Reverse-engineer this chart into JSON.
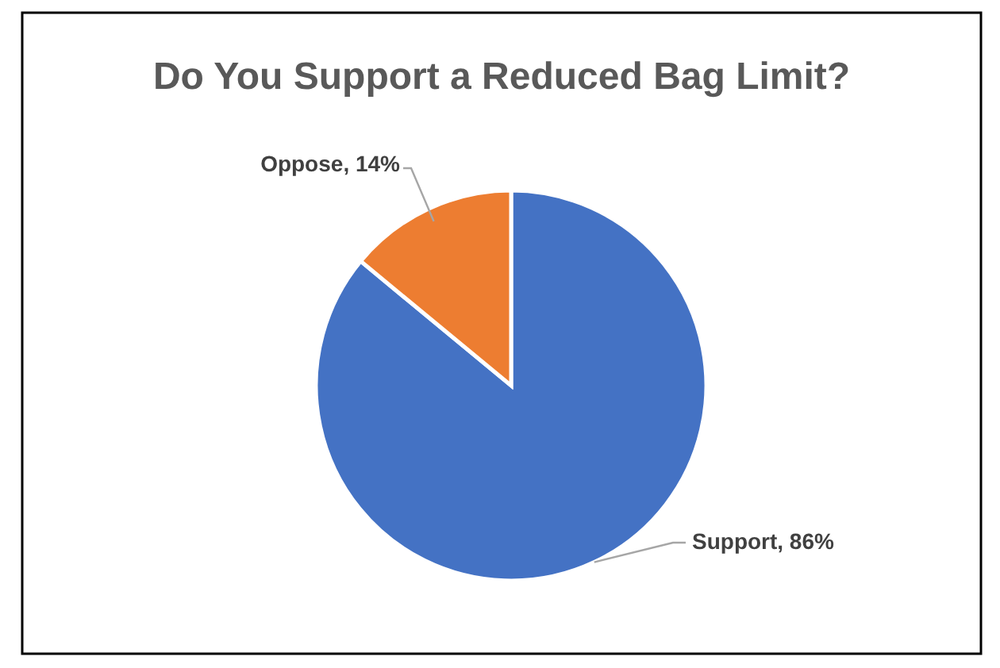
{
  "chart_data": {
    "type": "pie",
    "title": "Do You Support a Reduced Bag Limit?",
    "categories": [
      "Support",
      "Oppose"
    ],
    "values": [
      86,
      14
    ],
    "colors": [
      "#4472c4",
      "#ed7d31"
    ],
    "value_labels": [
      ", 86%",
      ", 14%"
    ],
    "legend": false
  }
}
